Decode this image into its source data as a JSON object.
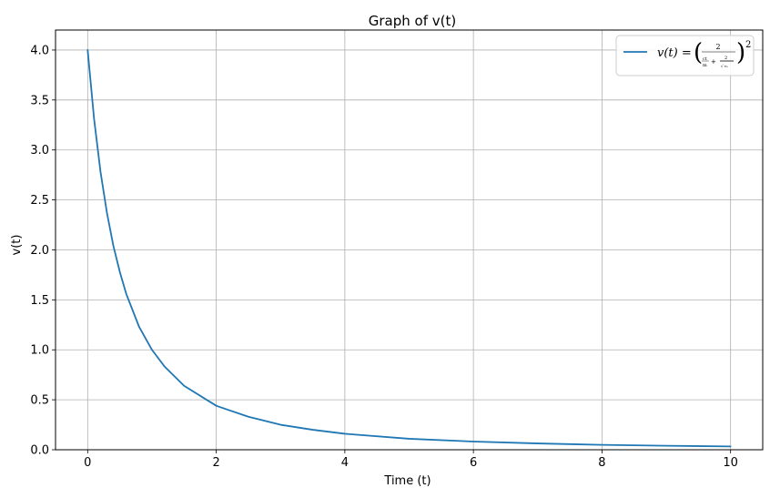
{
  "chart_data": {
    "type": "line",
    "title": "Graph of v(t)",
    "xlabel": "Time (t)",
    "ylabel": "v(t)",
    "xlim": [
      -0.5,
      10.5
    ],
    "ylim": [
      0.0,
      4.2
    ],
    "xticks": [
      0,
      2,
      4,
      6,
      8,
      10
    ],
    "xtick_labels": [
      "0",
      "2",
      "4",
      "6",
      "8",
      "10"
    ],
    "yticks": [
      0.0,
      0.5,
      1.0,
      1.5,
      2.0,
      2.5,
      3.0,
      3.5,
      4.0
    ],
    "ytick_labels": [
      "0.0",
      "0.5",
      "1.0",
      "1.5",
      "2.0",
      "2.5",
      "3.0",
      "3.5",
      "4.0"
    ],
    "grid": true,
    "legend_position": "top-right",
    "series": [
      {
        "name": "v(t) = (2 / (ct/m + 2/√v₀))²",
        "color": "#1f77b4",
        "x": [
          0,
          0.1,
          0.2,
          0.3,
          0.4,
          0.5,
          0.6,
          0.8,
          1.0,
          1.2,
          1.5,
          2.0,
          2.5,
          3.0,
          3.5,
          4.0,
          5.0,
          6.0,
          7.0,
          8.0,
          9.0,
          10.0
        ],
        "y": [
          4.0,
          3.31,
          2.78,
          2.37,
          2.04,
          1.78,
          1.56,
          1.23,
          1.0,
          0.83,
          0.64,
          0.44,
          0.33,
          0.25,
          0.2,
          0.16,
          0.11,
          0.082,
          0.063,
          0.049,
          0.04,
          0.033
        ]
      }
    ]
  }
}
